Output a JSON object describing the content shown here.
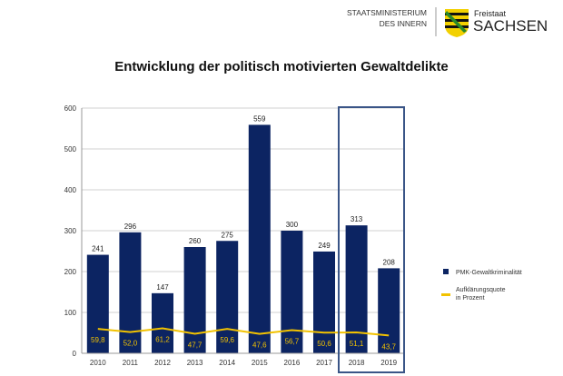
{
  "header": {
    "ministry_line1": "STAATSMINISTERIUM",
    "ministry_line2": "DES INNERN",
    "logo_small": "Freistaat",
    "logo_big": "SACHSEN"
  },
  "colors": {
    "bar": "#0c2462",
    "line": "#f2c200",
    "highlight": "#3a5587",
    "label_in_bar": "#f2c200"
  },
  "chart_data": {
    "type": "bar",
    "title": "Entwicklung der politisch motivierten Gewaltdelikte",
    "categories": [
      "2010",
      "2011",
      "2012",
      "2013",
      "2014",
      "2015",
      "2016",
      "2017",
      "2018",
      "2019"
    ],
    "series": [
      {
        "name": "PMK-Gewaltkriminalität",
        "type": "bar",
        "values": [
          241,
          296,
          147,
          260,
          275,
          559,
          300,
          249,
          313,
          208
        ]
      },
      {
        "name": "Aufklärungsquote in Prozent",
        "type": "line",
        "values": [
          59.8,
          52.0,
          61.2,
          47.7,
          59.6,
          47.6,
          56.7,
          50.6,
          51.1,
          43.7
        ],
        "labels": [
          "59,8",
          "52,0",
          "61,2",
          "47,7",
          "59,6",
          "47,6",
          "56,7",
          "50,6",
          "51,1",
          "43,7"
        ]
      }
    ],
    "legend": {
      "position": "right",
      "entries": [
        "PMK-Gewaltkriminalität",
        "Aufklärungsquote",
        "in Prozent"
      ]
    },
    "ylim": [
      0,
      600
    ],
    "yticks": [
      "0",
      "100",
      "200",
      "300",
      "400",
      "500",
      "600"
    ],
    "grid": true,
    "highlighted_categories": [
      "2018",
      "2019"
    ]
  }
}
